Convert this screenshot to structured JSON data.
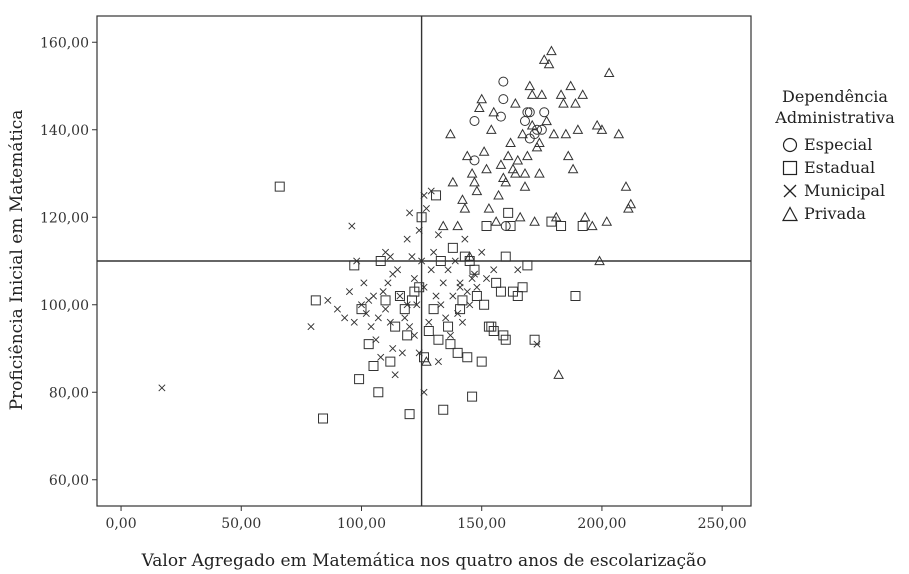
{
  "chart_data": {
    "type": "scatter",
    "xlabel": "Valor Agregado em Matemática nos quatro anos de escolarização",
    "ylabel": "Proficiência Inicial em Matemática",
    "xlim": [
      -10,
      262
    ],
    "ylim": [
      54,
      166
    ],
    "xticks": [
      "0,00",
      "50,00",
      "100,00",
      "150,00",
      "200,00",
      "250,00"
    ],
    "xtick_values": [
      0,
      50,
      100,
      150,
      200,
      250
    ],
    "yticks": [
      "60,00",
      "80,00",
      "100,00",
      "120,00",
      "140,00",
      "160,00"
    ],
    "ytick_values": [
      60,
      80,
      100,
      120,
      140,
      160
    ],
    "reference_lines": {
      "x": 125,
      "y": 110
    },
    "legend_title": [
      "Dependência",
      "Administrativa"
    ],
    "legend_position": "right",
    "series": [
      {
        "name": "Especial",
        "marker": "circle",
        "points": [
          [
            147,
            142
          ],
          [
            147,
            133
          ],
          [
            159,
            151
          ],
          [
            159,
            147
          ],
          [
            168,
            142
          ],
          [
            169,
            144
          ],
          [
            170,
            144
          ],
          [
            173,
            140
          ],
          [
            175,
            140
          ],
          [
            176,
            144
          ],
          [
            158,
            143
          ],
          [
            160,
            118
          ],
          [
            170,
            138
          ],
          [
            172,
            139
          ]
        ]
      },
      {
        "name": "Estadual",
        "marker": "square",
        "points": [
          [
            66,
            127
          ],
          [
            81,
            101
          ],
          [
            84,
            74
          ],
          [
            97,
            109
          ],
          [
            99,
            83
          ],
          [
            100,
            99
          ],
          [
            103,
            91
          ],
          [
            105,
            86
          ],
          [
            107,
            80
          ],
          [
            108,
            110
          ],
          [
            110,
            101
          ],
          [
            112,
            87
          ],
          [
            114,
            95
          ],
          [
            116,
            102
          ],
          [
            118,
            99
          ],
          [
            119,
            93
          ],
          [
            120,
            75
          ],
          [
            121,
            101
          ],
          [
            122,
            103
          ],
          [
            124,
            104
          ],
          [
            126,
            88
          ],
          [
            128,
            94
          ],
          [
            130,
            99
          ],
          [
            131,
            125
          ],
          [
            132,
            92
          ],
          [
            133,
            110
          ],
          [
            134,
            76
          ],
          [
            136,
            95
          ],
          [
            138,
            113
          ],
          [
            140,
            89
          ],
          [
            141,
            99
          ],
          [
            142,
            101
          ],
          [
            144,
            88
          ],
          [
            145,
            110
          ],
          [
            146,
            79
          ],
          [
            148,
            102
          ],
          [
            150,
            87
          ],
          [
            151,
            100
          ],
          [
            152,
            118
          ],
          [
            153,
            95
          ],
          [
            154,
            95
          ],
          [
            156,
            105
          ],
          [
            158,
            103
          ],
          [
            159,
            93
          ],
          [
            160,
            92
          ],
          [
            160,
            111
          ],
          [
            161,
            121
          ],
          [
            162,
            118
          ],
          [
            163,
            103
          ],
          [
            165,
            102
          ],
          [
            167,
            104
          ],
          [
            169,
            109
          ],
          [
            172,
            92
          ],
          [
            179,
            119
          ],
          [
            183,
            118
          ],
          [
            189,
            102
          ],
          [
            192,
            118
          ],
          [
            125,
            120
          ],
          [
            137,
            91
          ],
          [
            143,
            111
          ],
          [
            147,
            108
          ],
          [
            155,
            94
          ]
        ]
      },
      {
        "name": "Municipal",
        "marker": "cross",
        "points": [
          [
            17,
            81
          ],
          [
            79,
            95
          ],
          [
            86,
            101
          ],
          [
            90,
            99
          ],
          [
            93,
            97
          ],
          [
            95,
            103
          ],
          [
            96,
            118
          ],
          [
            97,
            96
          ],
          [
            98,
            110
          ],
          [
            100,
            100
          ],
          [
            101,
            105
          ],
          [
            102,
            98
          ],
          [
            103,
            101
          ],
          [
            104,
            95
          ],
          [
            105,
            102
          ],
          [
            106,
            92
          ],
          [
            107,
            97
          ],
          [
            108,
            88
          ],
          [
            109,
            103
          ],
          [
            110,
            99
          ],
          [
            111,
            105
          ],
          [
            112,
            111
          ],
          [
            112,
            96
          ],
          [
            113,
            90
          ],
          [
            114,
            84
          ],
          [
            115,
            108
          ],
          [
            116,
            102
          ],
          [
            117,
            89
          ],
          [
            118,
            97
          ],
          [
            119,
            100
          ],
          [
            120,
            121
          ],
          [
            120,
            95
          ],
          [
            121,
            111
          ],
          [
            122,
            93
          ],
          [
            122,
            106
          ],
          [
            123,
            100
          ],
          [
            124,
            117
          ],
          [
            124,
            89
          ],
          [
            125,
            110
          ],
          [
            126,
            104
          ],
          [
            126,
            80
          ],
          [
            127,
            122
          ],
          [
            128,
            96
          ],
          [
            129,
            108
          ],
          [
            130,
            112
          ],
          [
            131,
            102
          ],
          [
            132,
            87
          ],
          [
            132,
            116
          ],
          [
            133,
            100
          ],
          [
            134,
            105
          ],
          [
            135,
            97
          ],
          [
            136,
            108
          ],
          [
            137,
            93
          ],
          [
            138,
            102
          ],
          [
            139,
            110
          ],
          [
            140,
            98
          ],
          [
            141,
            105
          ],
          [
            142,
            96
          ],
          [
            143,
            115
          ],
          [
            144,
            103
          ],
          [
            145,
            100
          ],
          [
            146,
            106
          ],
          [
            147,
            107
          ],
          [
            148,
            104
          ],
          [
            150,
            112
          ],
          [
            152,
            106
          ],
          [
            155,
            108
          ],
          [
            165,
            108
          ],
          [
            173,
            91
          ],
          [
            110,
            112
          ],
          [
            113,
            107
          ],
          [
            119,
            115
          ],
          [
            126,
            125
          ],
          [
            129,
            126
          ],
          [
            141,
            104
          ]
        ]
      },
      {
        "name": "Privada",
        "marker": "triangle",
        "points": [
          [
            127,
            87
          ],
          [
            134,
            118
          ],
          [
            137,
            139
          ],
          [
            138,
            128
          ],
          [
            140,
            118
          ],
          [
            142,
            124
          ],
          [
            143,
            122
          ],
          [
            144,
            134
          ],
          [
            145,
            111
          ],
          [
            146,
            130
          ],
          [
            147,
            128
          ],
          [
            148,
            126
          ],
          [
            149,
            145
          ],
          [
            150,
            147
          ],
          [
            151,
            135
          ],
          [
            152,
            131
          ],
          [
            153,
            122
          ],
          [
            154,
            140
          ],
          [
            155,
            144
          ],
          [
            156,
            119
          ],
          [
            157,
            125
          ],
          [
            158,
            132
          ],
          [
            159,
            129
          ],
          [
            160,
            128
          ],
          [
            161,
            134
          ],
          [
            162,
            137
          ],
          [
            163,
            131
          ],
          [
            164,
            130
          ],
          [
            165,
            133
          ],
          [
            166,
            120
          ],
          [
            167,
            139
          ],
          [
            168,
            130
          ],
          [
            169,
            134
          ],
          [
            170,
            150
          ],
          [
            171,
            141
          ],
          [
            172,
            119
          ],
          [
            173,
            136
          ],
          [
            174,
            130
          ],
          [
            175,
            148
          ],
          [
            176,
            156
          ],
          [
            177,
            142
          ],
          [
            178,
            155
          ],
          [
            179,
            158
          ],
          [
            180,
            139
          ],
          [
            181,
            120
          ],
          [
            182,
            84
          ],
          [
            183,
            148
          ],
          [
            184,
            146
          ],
          [
            185,
            139
          ],
          [
            186,
            134
          ],
          [
            187,
            150
          ],
          [
            188,
            131
          ],
          [
            189,
            146
          ],
          [
            190,
            140
          ],
          [
            192,
            148
          ],
          [
            193,
            120
          ],
          [
            196,
            118
          ],
          [
            198,
            141
          ],
          [
            199,
            110
          ],
          [
            200,
            140
          ],
          [
            202,
            119
          ],
          [
            203,
            153
          ],
          [
            207,
            139
          ],
          [
            210,
            127
          ],
          [
            211,
            122
          ],
          [
            212,
            123
          ],
          [
            164,
            146
          ],
          [
            171,
            148
          ],
          [
            174,
            137
          ],
          [
            168,
            127
          ]
        ]
      }
    ]
  }
}
